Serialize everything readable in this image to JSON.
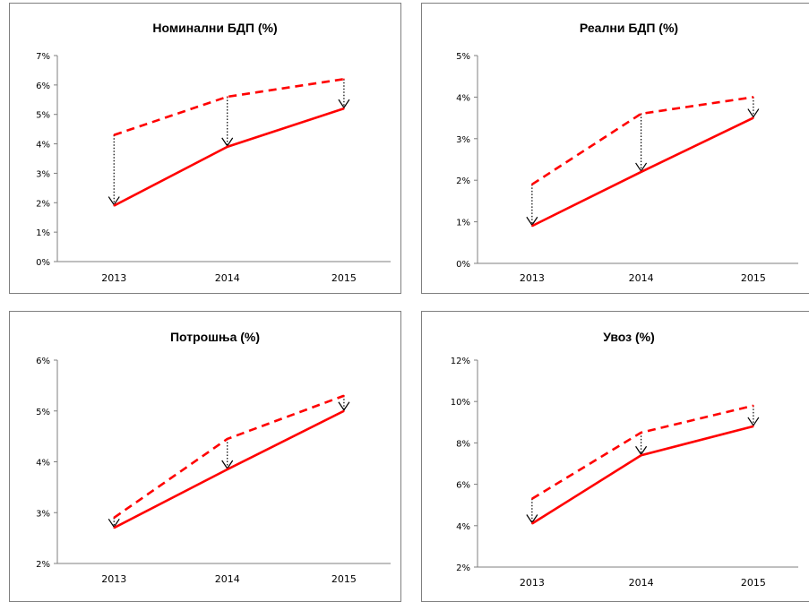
{
  "chart_data": [
    {
      "type": "line",
      "title": "Номинални БДП (%)",
      "categories": [
        "2013",
        "2014",
        "2015"
      ],
      "ylim": [
        0,
        7
      ],
      "yticks": [
        0,
        1,
        2,
        3,
        4,
        5,
        6,
        7
      ],
      "ytick_labels": [
        "0%",
        "1%",
        "2%",
        "3%",
        "4%",
        "5%",
        "6%",
        "7%"
      ],
      "series": [
        {
          "style": "dashed",
          "color": "#ff0000",
          "values": [
            4.3,
            5.6,
            6.2
          ]
        },
        {
          "style": "solid",
          "color": "#ff0000",
          "values": [
            1.9,
            3.9,
            5.2
          ]
        }
      ],
      "arrows": true,
      "grid": false,
      "legend": "none"
    },
    {
      "type": "line",
      "title": "Реални БДП (%)",
      "categories": [
        "2013",
        "2014",
        "2015"
      ],
      "ylim": [
        0,
        5
      ],
      "yticks": [
        0,
        1,
        2,
        3,
        4,
        5
      ],
      "ytick_labels": [
        "0%",
        "1%",
        "2%",
        "3%",
        "4%",
        "5%"
      ],
      "series": [
        {
          "style": "dashed",
          "color": "#ff0000",
          "values": [
            1.9,
            3.6,
            4.0
          ]
        },
        {
          "style": "solid",
          "color": "#ff0000",
          "values": [
            0.9,
            2.2,
            3.5
          ]
        }
      ],
      "arrows": true,
      "grid": false,
      "legend": "none"
    },
    {
      "type": "line",
      "title": "Потрошња (%)",
      "categories": [
        "2013",
        "2014",
        "2015"
      ],
      "ylim": [
        2,
        6
      ],
      "yticks": [
        2,
        3,
        4,
        5,
        6
      ],
      "ytick_labels": [
        "2%",
        "3%",
        "4%",
        "5%",
        "6%"
      ],
      "series": [
        {
          "style": "dashed",
          "color": "#ff0000",
          "values": [
            2.9,
            4.45,
            5.3
          ]
        },
        {
          "style": "solid",
          "color": "#ff0000",
          "values": [
            2.7,
            3.85,
            5.0
          ]
        }
      ],
      "arrows": true,
      "grid": false,
      "legend": "none"
    },
    {
      "type": "line",
      "title": "Увоз  (%)",
      "categories": [
        "2013",
        "2014",
        "2015"
      ],
      "ylim": [
        2,
        12
      ],
      "yticks": [
        2,
        4,
        6,
        8,
        10,
        12
      ],
      "ytick_labels": [
        "2%",
        "4%",
        "6%",
        "8%",
        "10%",
        "12%"
      ],
      "series": [
        {
          "style": "dashed",
          "color": "#ff0000",
          "values": [
            5.3,
            8.5,
            9.8
          ]
        },
        {
          "style": "solid",
          "color": "#ff0000",
          "values": [
            4.1,
            7.4,
            8.8
          ]
        }
      ],
      "arrows": true,
      "grid": false,
      "legend": "none"
    }
  ]
}
